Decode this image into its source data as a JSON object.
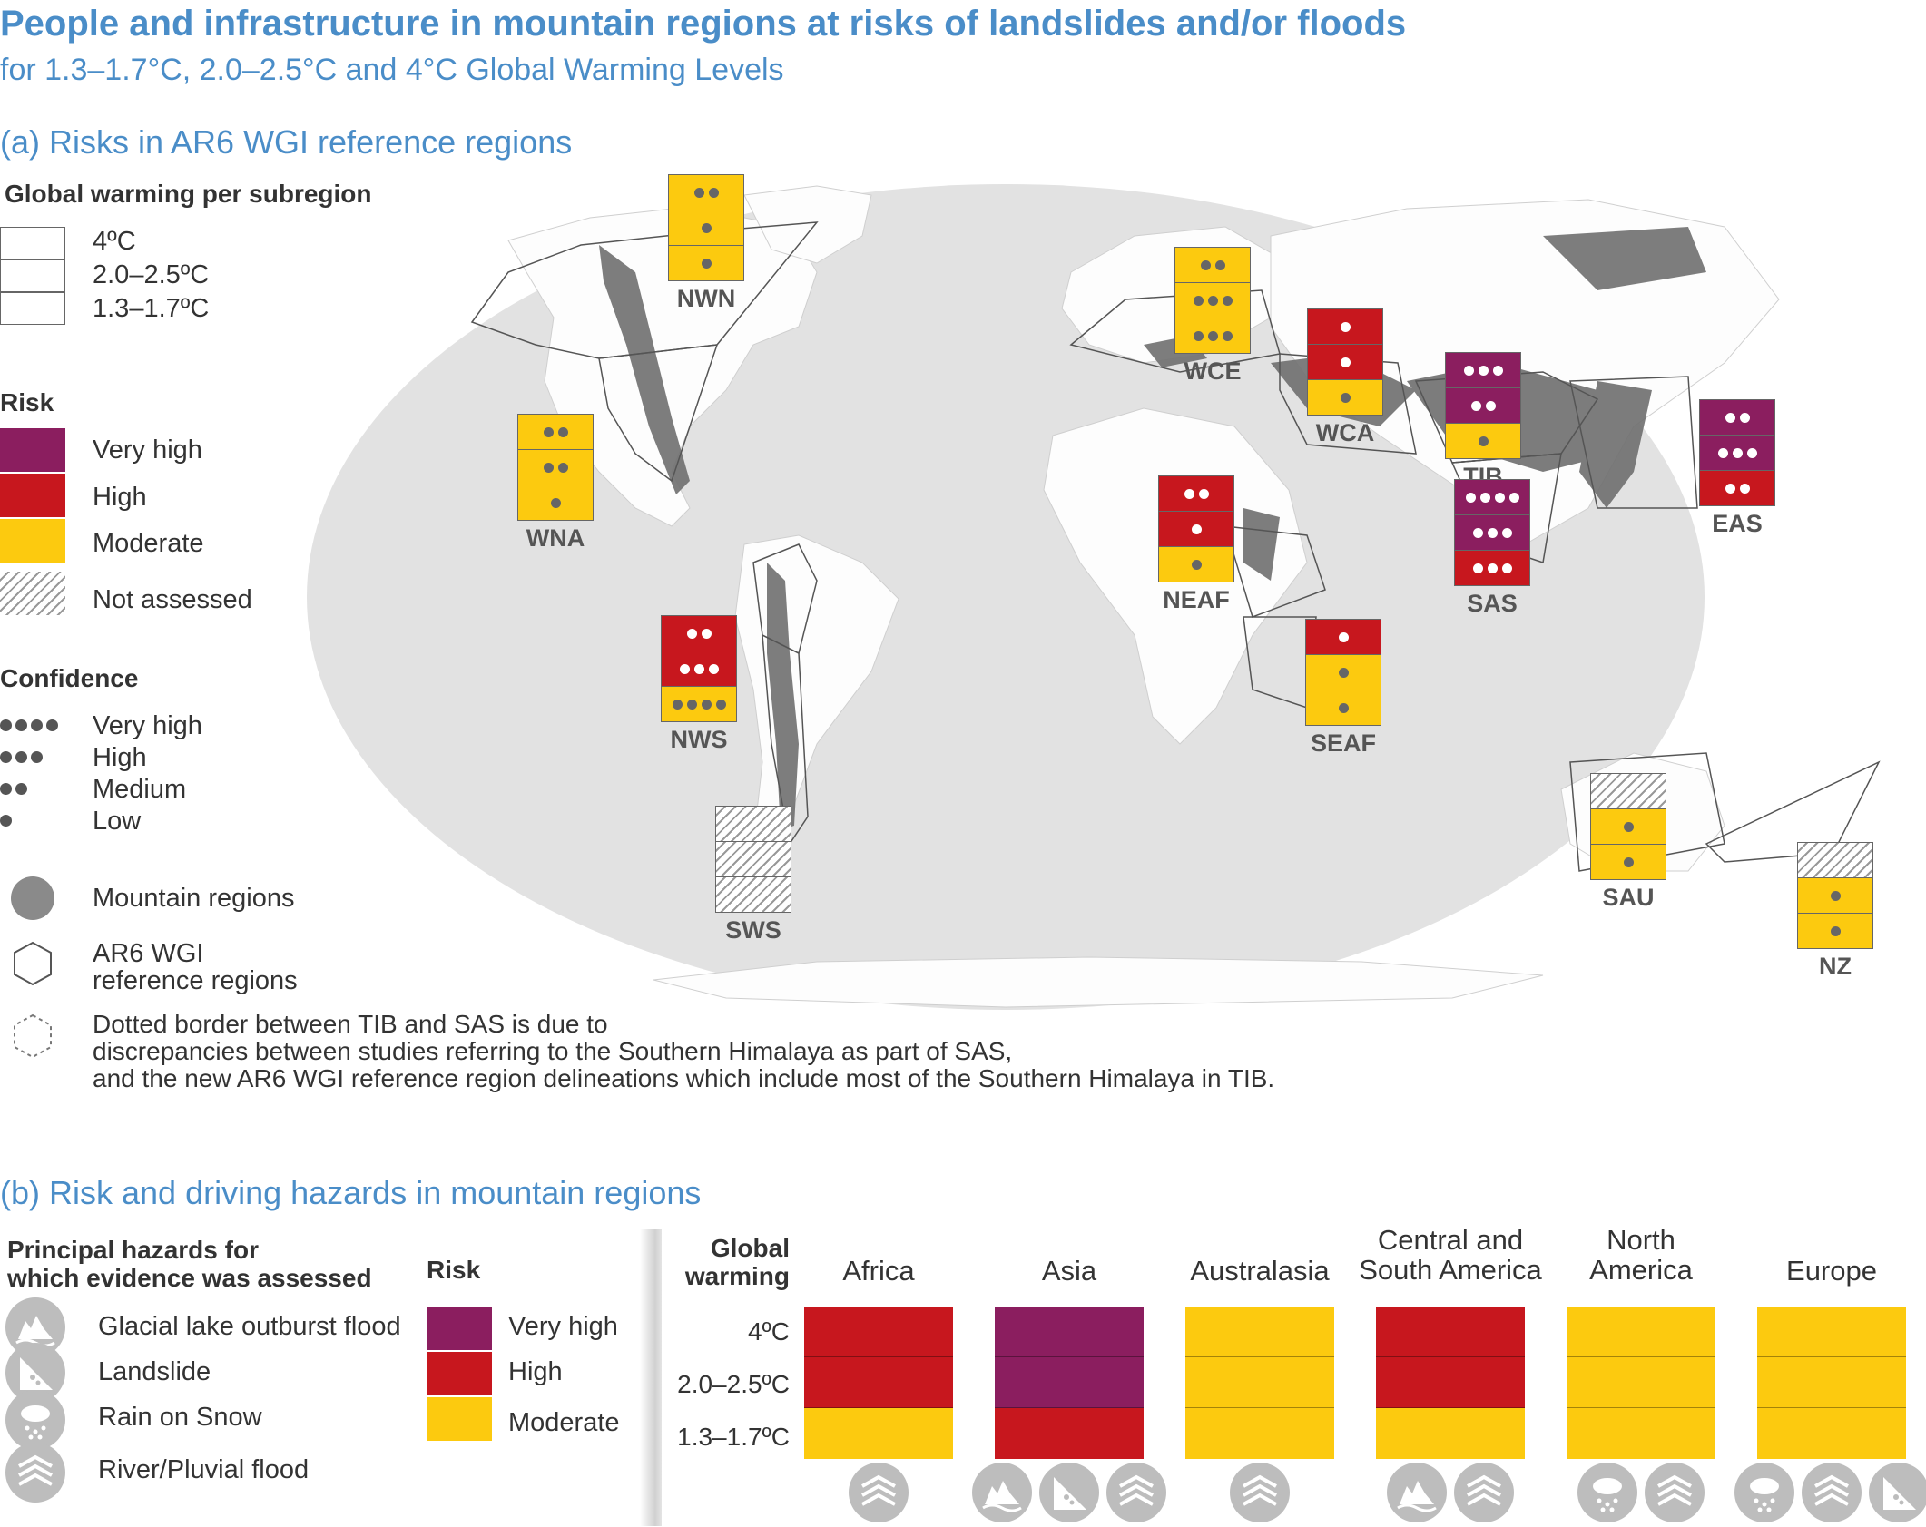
{
  "header": {
    "title": "People and infrastructure in mountain regions at risks of landslides and/or floods",
    "subtitle": "for 1.3–1.7°C, 2.0–2.5°C and 4°C Global Warming Levels"
  },
  "colors": {
    "very_high": "#8b1e5f",
    "high": "#c7171e",
    "moderate": "#fcca0f",
    "map": "#dcdcdc",
    "mountain": "#707070",
    "title": "#4a8dc8"
  },
  "panel_a": {
    "title": "(a) Risks in AR6 WGI reference regions",
    "legend": {
      "warming_title": "Global warming per subregion",
      "warming": [
        "4ºC",
        "2.0–2.5ºC",
        "1.3–1.7ºC"
      ],
      "risk_title": "Risk",
      "risk": [
        "Very high",
        "High",
        "Moderate",
        "Not assessed"
      ],
      "confidence_title": "Confidence",
      "confidence": [
        "Very high",
        "High",
        "Medium",
        "Low"
      ],
      "mountain": "Mountain regions",
      "ar6_line1": "AR6 WGI",
      "ar6_line2": "reference regions",
      "dotted_line1": "Dotted border between TIB and SAS is due to",
      "dotted_line2": "discrepancies between studies referring to the Southern Himalaya as part of SAS,",
      "dotted_line3": "and the new AR6 WGI reference region delineations which include most of the Southern Himalaya in TIB."
    },
    "regions": [
      {
        "code": "NWN",
        "levels": [
          {
            "risk": "moderate",
            "confidence": 2
          },
          {
            "risk": "moderate",
            "confidence": 1
          },
          {
            "risk": "moderate",
            "confidence": 1
          }
        ]
      },
      {
        "code": "WNA",
        "levels": [
          {
            "risk": "moderate",
            "confidence": 2
          },
          {
            "risk": "moderate",
            "confidence": 2
          },
          {
            "risk": "moderate",
            "confidence": 1
          }
        ]
      },
      {
        "code": "NWS",
        "levels": [
          {
            "risk": "high",
            "confidence": 2
          },
          {
            "risk": "high",
            "confidence": 3
          },
          {
            "risk": "moderate",
            "confidence": 4
          }
        ]
      },
      {
        "code": "SWS",
        "levels": [
          {
            "risk": "not-assessed",
            "confidence": 0
          },
          {
            "risk": "not-assessed",
            "confidence": 0
          },
          {
            "risk": "not-assessed",
            "confidence": 0
          }
        ]
      },
      {
        "code": "WCE",
        "levels": [
          {
            "risk": "moderate",
            "confidence": 2
          },
          {
            "risk": "moderate",
            "confidence": 3
          },
          {
            "risk": "moderate",
            "confidence": 3
          }
        ]
      },
      {
        "code": "WCA",
        "levels": [
          {
            "risk": "high",
            "confidence": 1
          },
          {
            "risk": "high",
            "confidence": 1
          },
          {
            "risk": "moderate",
            "confidence": 1
          }
        ]
      },
      {
        "code": "TIB",
        "levels": [
          {
            "risk": "very-high",
            "confidence": 3
          },
          {
            "risk": "very-high",
            "confidence": 2
          },
          {
            "risk": "moderate",
            "confidence": 1
          }
        ]
      },
      {
        "code": "EAS",
        "levels": [
          {
            "risk": "very-high",
            "confidence": 2
          },
          {
            "risk": "very-high",
            "confidence": 3
          },
          {
            "risk": "high",
            "confidence": 2
          }
        ]
      },
      {
        "code": "NEAF",
        "levels": [
          {
            "risk": "high",
            "confidence": 2
          },
          {
            "risk": "high",
            "confidence": 1
          },
          {
            "risk": "moderate",
            "confidence": 1
          }
        ]
      },
      {
        "code": "SAS",
        "levels": [
          {
            "risk": "very-high",
            "confidence": 4
          },
          {
            "risk": "very-high",
            "confidence": 3
          },
          {
            "risk": "high",
            "confidence": 3
          }
        ]
      },
      {
        "code": "SEAF",
        "levels": [
          {
            "risk": "high",
            "confidence": 1
          },
          {
            "risk": "moderate",
            "confidence": 1
          },
          {
            "risk": "moderate",
            "confidence": 1
          }
        ]
      },
      {
        "code": "SAU",
        "levels": [
          {
            "risk": "not-assessed",
            "confidence": 0
          },
          {
            "risk": "moderate",
            "confidence": 1
          },
          {
            "risk": "moderate",
            "confidence": 1
          }
        ]
      },
      {
        "code": "NZ",
        "levels": [
          {
            "risk": "not-assessed",
            "confidence": 0
          },
          {
            "risk": "moderate",
            "confidence": 1
          },
          {
            "risk": "moderate",
            "confidence": 1
          }
        ]
      }
    ]
  },
  "panel_b": {
    "title": "(b) Risk and driving hazards in mountain regions",
    "hazards_title_line1": "Principal hazards for",
    "hazards_title_line2": "which evidence was assessed",
    "hazards": [
      "Glacial lake outburst flood",
      "Landslide",
      "Rain on Snow",
      "River/Pluvial flood"
    ],
    "risk_title": "Risk",
    "risk": [
      "Very high",
      "High",
      "Moderate"
    ],
    "gw_title_line1": "Global",
    "gw_title_line2": "warming",
    "gw_levels": [
      "4ºC",
      "2.0–2.5ºC",
      "1.3–1.7ºC"
    ],
    "continents": [
      {
        "name_line1": "Africa",
        "name_line2": "",
        "levels": [
          "high",
          "high",
          "moderate"
        ],
        "hazards": [
          "flood"
        ]
      },
      {
        "name_line1": "Asia",
        "name_line2": "",
        "levels": [
          "very-high",
          "very-high",
          "high"
        ],
        "hazards": [
          "glof",
          "landslide",
          "flood"
        ]
      },
      {
        "name_line1": "Australasia",
        "name_line2": "",
        "levels": [
          "moderate",
          "moderate",
          "moderate"
        ],
        "hazards": [
          "flood"
        ]
      },
      {
        "name_line1": "Central and",
        "name_line2": "South America",
        "levels": [
          "high",
          "high",
          "moderate"
        ],
        "hazards": [
          "glof",
          "flood"
        ]
      },
      {
        "name_line1": "North",
        "name_line2": "America",
        "levels": [
          "moderate",
          "moderate",
          "moderate"
        ],
        "hazards": [
          "rain-on-snow",
          "flood"
        ]
      },
      {
        "name_line1": "Europe",
        "name_line2": "",
        "levels": [
          "moderate",
          "moderate",
          "moderate"
        ],
        "hazards": [
          "rain-on-snow",
          "flood",
          "landslide"
        ]
      }
    ]
  }
}
